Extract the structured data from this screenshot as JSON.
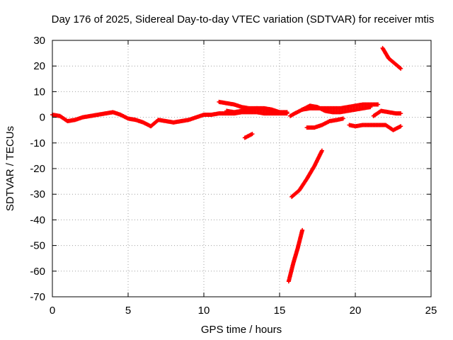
{
  "chart_data": {
    "type": "scatter",
    "title": "Day 176 of 2025, Sidereal Day-to-day VTEC variation (SDTVAR) for receiver mtis",
    "xlabel": "GPS time / hours",
    "ylabel": "SDTVAR / TECUs",
    "xlim": [
      0,
      25
    ],
    "ylim": [
      -70,
      30
    ],
    "xticks": [
      0,
      5,
      10,
      15,
      20,
      25
    ],
    "yticks": [
      -70,
      -60,
      -50,
      -40,
      -30,
      -20,
      -10,
      0,
      10,
      20,
      30
    ],
    "grid": true,
    "legend": "none",
    "marker": "plus",
    "color": "#ff0000",
    "series": [
      {
        "points": [
          [
            0,
            1
          ],
          [
            0.5,
            0.5
          ],
          [
            1,
            -1.5
          ],
          [
            1.5,
            -1
          ],
          [
            2,
            0
          ],
          [
            2.5,
            0.5
          ],
          [
            3,
            1
          ],
          [
            3.5,
            1.5
          ],
          [
            4,
            2
          ],
          [
            4.5,
            1
          ],
          [
            5,
            -0.5
          ],
          [
            5.5,
            -1
          ],
          [
            6,
            -2
          ],
          [
            6.5,
            -3.5
          ],
          [
            7,
            -1
          ],
          [
            7.5,
            -1.5
          ],
          [
            8,
            -2
          ],
          [
            8.5,
            -1.5
          ],
          [
            9,
            -1
          ],
          [
            9.5,
            0
          ],
          [
            10,
            1
          ],
          [
            10.5,
            1
          ],
          [
            11,
            1.5
          ],
          [
            11.5,
            1.5
          ],
          [
            12,
            1.5
          ],
          [
            12.5,
            2
          ],
          [
            13,
            2
          ],
          [
            13.5,
            2
          ],
          [
            14,
            1.5
          ],
          [
            14.5,
            1.5
          ],
          [
            15,
            1.5
          ],
          [
            15.5,
            1.5
          ]
        ]
      },
      {
        "points": [
          [
            11,
            6
          ],
          [
            11.5,
            5.5
          ],
          [
            12,
            5
          ],
          [
            12.5,
            4
          ],
          [
            13,
            3.5
          ],
          [
            13.5,
            3.5
          ],
          [
            14,
            3
          ],
          [
            14.5,
            2.5
          ],
          [
            15,
            2
          ],
          [
            15.5,
            2
          ]
        ]
      },
      {
        "points": [
          [
            11.5,
            2.5
          ],
          [
            12,
            2
          ],
          [
            12.5,
            2.5
          ],
          [
            13,
            3
          ],
          [
            13.5,
            3.5
          ],
          [
            14,
            3.5
          ],
          [
            14.5,
            3
          ],
          [
            15,
            2
          ]
        ]
      },
      {
        "points": [
          [
            12.7,
            -8
          ],
          [
            13.2,
            -6.5
          ]
        ]
      },
      {
        "points": [
          [
            15.7,
            0.5
          ],
          [
            16,
            1.5
          ],
          [
            16.5,
            3
          ],
          [
            17,
            3.5
          ],
          [
            17.5,
            3.5
          ],
          [
            18,
            3.5
          ],
          [
            18.5,
            3.5
          ],
          [
            19,
            3.5
          ],
          [
            19.5,
            4
          ],
          [
            20,
            4.5
          ],
          [
            20.5,
            5
          ],
          [
            21,
            5
          ],
          [
            21.5,
            5
          ]
        ]
      },
      {
        "points": [
          [
            16.5,
            3
          ],
          [
            17,
            4.5
          ],
          [
            17.5,
            4
          ],
          [
            18,
            2.5
          ],
          [
            18.5,
            2
          ],
          [
            19,
            2
          ],
          [
            19.5,
            2.5
          ],
          [
            20,
            3
          ],
          [
            20.5,
            3.5
          ],
          [
            21,
            4
          ]
        ]
      },
      {
        "points": [
          [
            16.8,
            -4
          ],
          [
            17.3,
            -4
          ],
          [
            17.8,
            -3
          ],
          [
            18.3,
            -1.5
          ],
          [
            18.8,
            -1
          ],
          [
            19.2,
            -0.5
          ]
        ]
      },
      {
        "points": [
          [
            19.6,
            -3
          ],
          [
            20,
            -3.5
          ],
          [
            20.5,
            -3
          ],
          [
            21,
            -3
          ],
          [
            21.5,
            -3
          ],
          [
            22,
            -3
          ],
          [
            22.5,
            -5
          ],
          [
            23,
            -3.5
          ]
        ]
      },
      {
        "points": [
          [
            21.2,
            0.5
          ],
          [
            21.7,
            2.5
          ],
          [
            22.2,
            2
          ],
          [
            22.7,
            1.5
          ],
          [
            23,
            1.5
          ]
        ]
      },
      {
        "points": [
          [
            21.8,
            27
          ],
          [
            22.2,
            23
          ],
          [
            22.6,
            21
          ],
          [
            23,
            19
          ]
        ]
      },
      {
        "points": [
          [
            15.8,
            -31
          ],
          [
            16.3,
            -28.5
          ],
          [
            16.8,
            -24
          ],
          [
            17.3,
            -19
          ],
          [
            17.8,
            -13
          ]
        ]
      },
      {
        "points": [
          [
            15.6,
            -64
          ],
          [
            15.9,
            -57
          ],
          [
            16.2,
            -51
          ],
          [
            16.5,
            -44
          ]
        ]
      }
    ]
  }
}
